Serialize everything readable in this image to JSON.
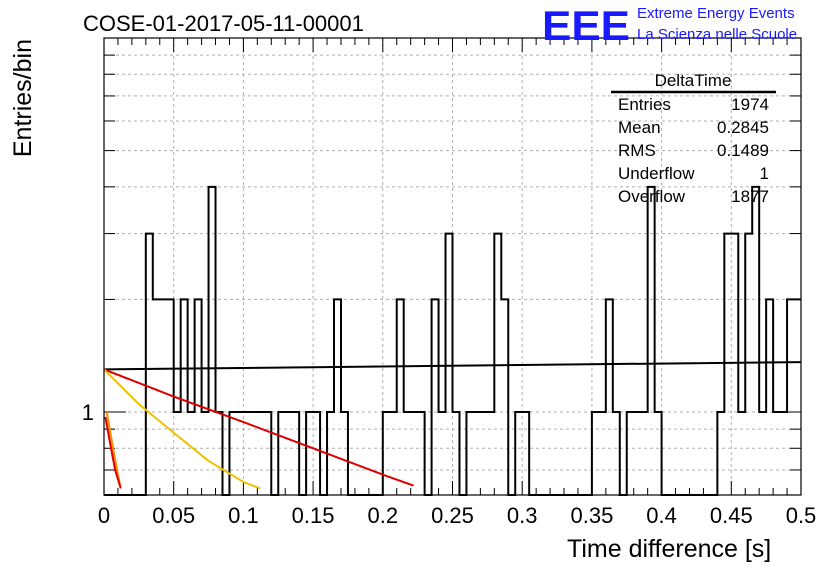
{
  "header": {
    "run_id": "COSE-01-2017-05-11-00001",
    "logo_text": "EEE",
    "logo_line1": "Extreme Energy Events",
    "logo_line2": "La Scienza nelle Scuole",
    "logo_color": "#1a1aff"
  },
  "stats_box": {
    "title": "DeltaTime",
    "rows": [
      {
        "label": "Entries",
        "value": "1974"
      },
      {
        "label": "Mean",
        "value": "0.2845"
      },
      {
        "label": "RMS",
        "value": "0.1489"
      },
      {
        "label": "Underflow",
        "value": "1"
      },
      {
        "label": "Overflow",
        "value": "1877"
      }
    ]
  },
  "chart_data": {
    "type": "line",
    "subtype": "histogram-with-fits",
    "xlabel": "Time difference [s]",
    "ylabel": "Entries/bin",
    "xlim": [
      0,
      0.5
    ],
    "ylim": [
      0.6,
      10
    ],
    "yscale": "log",
    "grid": true,
    "x_ticks": [
      "0",
      "0.05",
      "0.1",
      "0.15",
      "0.2",
      "0.25",
      "0.3",
      "0.35",
      "0.4",
      "0.45",
      "0.5"
    ],
    "y_tick_labels": [
      {
        "value": 1,
        "label": "1"
      }
    ],
    "histogram": {
      "bin_edges": [
        0,
        0.03,
        0.035,
        0.05,
        0.055,
        0.06,
        0.065,
        0.07,
        0.075,
        0.08,
        0.085,
        0.09,
        0.12,
        0.125,
        0.135,
        0.14,
        0.145,
        0.155,
        0.16,
        0.165,
        0.17,
        0.175,
        0.2,
        0.21,
        0.215,
        0.23,
        0.235,
        0.24,
        0.245,
        0.25,
        0.255,
        0.26,
        0.27,
        0.28,
        0.285,
        0.29,
        0.295,
        0.305,
        0.35,
        0.36,
        0.365,
        0.37,
        0.375,
        0.39,
        0.395,
        0.4,
        0.44,
        0.445,
        0.455,
        0.46,
        0.465,
        0.47,
        0.475,
        0.48,
        0.49,
        0.5
      ],
      "counts": [
        0.6,
        3,
        2,
        1,
        2,
        1,
        2,
        1,
        4,
        1,
        0.6,
        1,
        0.6,
        1,
        1,
        0.6,
        1,
        0.6,
        1,
        2,
        1,
        0.6,
        1,
        2,
        1,
        0.6,
        2,
        1,
        3,
        1,
        0.6,
        1,
        1,
        3,
        2,
        0.6,
        1,
        0.6,
        1,
        2,
        1,
        0.6,
        1,
        4,
        1,
        0.6,
        1,
        3,
        1,
        3,
        4,
        1,
        2,
        1,
        2
      ]
    },
    "fits": [
      {
        "color": "#000000",
        "points": [
          [
            0,
            1.3
          ],
          [
            0.5,
            1.36
          ]
        ]
      },
      {
        "color": "#dd0000",
        "points": [
          [
            0,
            1.3
          ],
          [
            0.05,
            1.1
          ],
          [
            0.1,
            0.94
          ],
          [
            0.15,
            0.8
          ],
          [
            0.2,
            0.68
          ],
          [
            0.222,
            0.636
          ]
        ]
      },
      {
        "color": "#f0c000",
        "points": [
          [
            0,
            1.3
          ],
          [
            0.025,
            1.05
          ],
          [
            0.05,
            0.88
          ],
          [
            0.075,
            0.74
          ],
          [
            0.1,
            0.65
          ],
          [
            0.112,
            0.625
          ]
        ]
      },
      {
        "color": "#ff8c00",
        "points": [
          [
            0.002,
            1.0
          ],
          [
            0.006,
            0.82
          ],
          [
            0.01,
            0.68
          ],
          [
            0.012,
            0.625
          ]
        ]
      },
      {
        "color": "#dd0000",
        "points": [
          [
            0.001,
            0.97
          ],
          [
            0.004,
            0.84
          ],
          [
            0.008,
            0.7
          ],
          [
            0.012,
            0.625
          ]
        ]
      }
    ]
  }
}
